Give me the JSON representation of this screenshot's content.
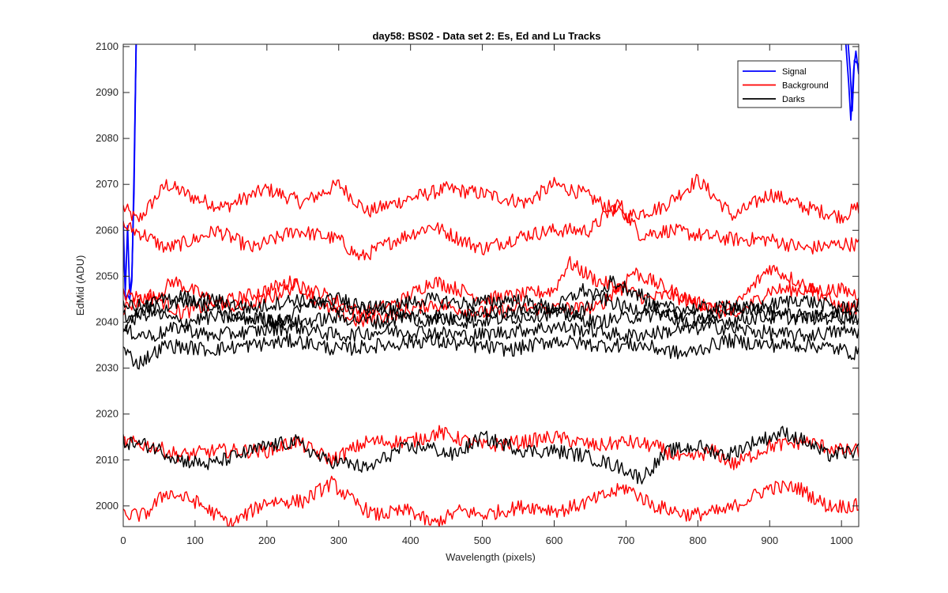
{
  "chart_data": {
    "type": "line",
    "title": "day58: BS02 - Data set 2: Es, Ed and Lu Tracks",
    "xlabel": "Wavelength (pixels)",
    "ylabel": "EdMid (ADU)",
    "xlim": [
      0,
      1024
    ],
    "ylim": [
      1995.5,
      2100.5
    ],
    "xticks": [
      0,
      100,
      200,
      300,
      400,
      500,
      600,
      700,
      800,
      900,
      1000
    ],
    "yticks": [
      2000,
      2010,
      2020,
      2030,
      2040,
      2050,
      2060,
      2070,
      2080,
      2090,
      2100
    ],
    "grid": false,
    "legend": {
      "position": "top-right",
      "entries": [
        {
          "label": "Signal",
          "color": "#0000ff"
        },
        {
          "label": "Background",
          "color": "#ff0000"
        },
        {
          "label": "Darks",
          "color": "#000000"
        }
      ]
    },
    "series": [
      {
        "group": "Signal",
        "color": "#0000ff",
        "points": [
          [
            0,
            2058
          ],
          [
            3,
            2047
          ],
          [
            6,
            2061
          ],
          [
            9,
            2046
          ],
          [
            12,
            2050
          ],
          [
            15,
            2068
          ],
          [
            18,
            2102
          ],
          [
            1005,
            2103
          ],
          [
            1010,
            2092
          ],
          [
            1013,
            2084
          ],
          [
            1017,
            2095
          ],
          [
            1020,
            2099
          ],
          [
            1024,
            2094
          ]
        ]
      },
      {
        "group": "Signal",
        "color": "#0000ff",
        "points": [
          [
            0,
            2062
          ],
          [
            3,
            2045
          ],
          [
            6,
            2046
          ],
          [
            9,
            2045
          ],
          [
            12,
            2049
          ],
          [
            15,
            2072
          ],
          [
            18,
            2101
          ],
          [
            1008,
            2103
          ],
          [
            1012,
            2095
          ],
          [
            1015,
            2086
          ],
          [
            1018,
            2097
          ],
          [
            1024,
            2096
          ]
        ]
      },
      {
        "group": "Background",
        "color": "#ff0000",
        "points": [
          [
            0,
            2065
          ],
          [
            20,
            2062
          ],
          [
            60,
            2070
          ],
          [
            100,
            2067
          ],
          [
            140,
            2065
          ],
          [
            200,
            2069
          ],
          [
            250,
            2066
          ],
          [
            300,
            2070
          ],
          [
            340,
            2064
          ],
          [
            400,
            2067
          ],
          [
            450,
            2069
          ],
          [
            500,
            2068
          ],
          [
            560,
            2066
          ],
          [
            600,
            2070
          ],
          [
            640,
            2068
          ],
          [
            700,
            2063
          ],
          [
            750,
            2065
          ],
          [
            800,
            2071
          ],
          [
            850,
            2063
          ],
          [
            900,
            2068
          ],
          [
            950,
            2065
          ],
          [
            1000,
            2063
          ],
          [
            1024,
            2065
          ]
        ]
      },
      {
        "group": "Background",
        "color": "#ff0000",
        "points": [
          [
            0,
            2061
          ],
          [
            30,
            2059
          ],
          [
            60,
            2056
          ],
          [
            100,
            2058
          ],
          [
            130,
            2060
          ],
          [
            180,
            2056
          ],
          [
            240,
            2060
          ],
          [
            300,
            2058
          ],
          [
            330,
            2054
          ],
          [
            380,
            2058
          ],
          [
            430,
            2061
          ],
          [
            470,
            2058
          ],
          [
            500,
            2056
          ],
          [
            560,
            2059
          ],
          [
            600,
            2060
          ],
          [
            650,
            2060
          ],
          [
            690,
            2066
          ],
          [
            720,
            2059
          ],
          [
            760,
            2060
          ],
          [
            800,
            2059
          ],
          [
            850,
            2058
          ],
          [
            900,
            2058
          ],
          [
            950,
            2056
          ],
          [
            1000,
            2057
          ],
          [
            1024,
            2057
          ]
        ]
      },
      {
        "group": "Background",
        "color": "#ff0000",
        "points": [
          [
            0,
            2046
          ],
          [
            40,
            2045
          ],
          [
            70,
            2049
          ],
          [
            120,
            2045
          ],
          [
            160,
            2043
          ],
          [
            200,
            2045
          ],
          [
            240,
            2048
          ],
          [
            280,
            2046
          ],
          [
            330,
            2042
          ],
          [
            380,
            2044
          ],
          [
            430,
            2049
          ],
          [
            470,
            2047
          ],
          [
            500,
            2045
          ],
          [
            560,
            2046
          ],
          [
            600,
            2047
          ],
          [
            620,
            2053
          ],
          [
            660,
            2049
          ],
          [
            700,
            2047
          ],
          [
            730,
            2045
          ],
          [
            760,
            2046
          ],
          [
            800,
            2044
          ],
          [
            850,
            2041
          ],
          [
            900,
            2047
          ],
          [
            950,
            2047
          ],
          [
            1000,
            2047
          ],
          [
            1024,
            2046
          ]
        ]
      },
      {
        "group": "Background",
        "color": "#ff0000",
        "points": [
          [
            0,
            2043
          ],
          [
            40,
            2046
          ],
          [
            80,
            2042
          ],
          [
            130,
            2044
          ],
          [
            180,
            2046
          ],
          [
            240,
            2049
          ],
          [
            280,
            2043
          ],
          [
            330,
            2040
          ],
          [
            380,
            2042
          ],
          [
            430,
            2044
          ],
          [
            500,
            2042
          ],
          [
            560,
            2043
          ],
          [
            600,
            2043
          ],
          [
            660,
            2043
          ],
          [
            710,
            2051
          ],
          [
            760,
            2047
          ],
          [
            800,
            2044
          ],
          [
            850,
            2043
          ],
          [
            900,
            2052
          ],
          [
            950,
            2048
          ],
          [
            1000,
            2043
          ],
          [
            1024,
            2043
          ]
        ]
      },
      {
        "group": "Background",
        "color": "#ff0000",
        "points": [
          [
            0,
            2014
          ],
          [
            40,
            2013
          ],
          [
            80,
            2011
          ],
          [
            130,
            2012
          ],
          [
            200,
            2012
          ],
          [
            240,
            2014
          ],
          [
            290,
            2010
          ],
          [
            340,
            2014
          ],
          [
            400,
            2014
          ],
          [
            440,
            2016
          ],
          [
            500,
            2013
          ],
          [
            560,
            2014
          ],
          [
            600,
            2015
          ],
          [
            660,
            2013
          ],
          [
            700,
            2014
          ],
          [
            740,
            2013
          ],
          [
            780,
            2010
          ],
          [
            820,
            2012
          ],
          [
            850,
            2009
          ],
          [
            900,
            2013
          ],
          [
            950,
            2014
          ],
          [
            1000,
            2012
          ],
          [
            1024,
            2012
          ]
        ]
      },
      {
        "group": "Background",
        "color": "#ff0000",
        "points": [
          [
            0,
            1998
          ],
          [
            30,
            1998
          ],
          [
            60,
            2003
          ],
          [
            100,
            2001
          ],
          [
            150,
            1996
          ],
          [
            200,
            2001
          ],
          [
            250,
            2001
          ],
          [
            290,
            2005
          ],
          [
            320,
            2001
          ],
          [
            350,
            1998
          ],
          [
            400,
            1999
          ],
          [
            430,
            1996
          ],
          [
            470,
            1999
          ],
          [
            500,
            1998
          ],
          [
            560,
            2000
          ],
          [
            610,
            1999
          ],
          [
            650,
            2001
          ],
          [
            700,
            2004
          ],
          [
            740,
            2000
          ],
          [
            790,
            1998
          ],
          [
            840,
            1999
          ],
          [
            900,
            2004
          ],
          [
            940,
            2004
          ],
          [
            980,
            2000
          ],
          [
            1024,
            2000
          ]
        ]
      },
      {
        "group": "Darks",
        "color": "#000000",
        "points": [
          [
            0,
            2044
          ],
          [
            40,
            2043
          ],
          [
            80,
            2044
          ],
          [
            120,
            2045
          ],
          [
            180,
            2043
          ],
          [
            240,
            2045
          ],
          [
            300,
            2043
          ],
          [
            360,
            2043
          ],
          [
            420,
            2045
          ],
          [
            480,
            2044
          ],
          [
            540,
            2045
          ],
          [
            600,
            2043
          ],
          [
            640,
            2047
          ],
          [
            700,
            2043
          ],
          [
            760,
            2043
          ],
          [
            820,
            2043
          ],
          [
            880,
            2043
          ],
          [
            940,
            2045
          ],
          [
            1000,
            2043
          ],
          [
            1024,
            2044
          ]
        ]
      },
      {
        "group": "Darks",
        "color": "#000000",
        "points": [
          [
            0,
            2041
          ],
          [
            40,
            2042
          ],
          [
            80,
            2040
          ],
          [
            120,
            2041
          ],
          [
            180,
            2041
          ],
          [
            240,
            2040
          ],
          [
            300,
            2041
          ],
          [
            360,
            2040
          ],
          [
            420,
            2042
          ],
          [
            480,
            2040
          ],
          [
            540,
            2041
          ],
          [
            600,
            2042
          ],
          [
            660,
            2040
          ],
          [
            700,
            2041
          ],
          [
            760,
            2042
          ],
          [
            820,
            2040
          ],
          [
            880,
            2041
          ],
          [
            940,
            2041
          ],
          [
            1000,
            2041
          ],
          [
            1024,
            2041
          ]
        ]
      },
      {
        "group": "Darks",
        "color": "#000000",
        "points": [
          [
            0,
            2038
          ],
          [
            40,
            2037
          ],
          [
            80,
            2039
          ],
          [
            120,
            2037
          ],
          [
            180,
            2038
          ],
          [
            240,
            2039
          ],
          [
            300,
            2037
          ],
          [
            360,
            2038
          ],
          [
            420,
            2038
          ],
          [
            480,
            2037
          ],
          [
            540,
            2038
          ],
          [
            600,
            2039
          ],
          [
            660,
            2038
          ],
          [
            700,
            2037
          ],
          [
            760,
            2038
          ],
          [
            820,
            2039
          ],
          [
            880,
            2038
          ],
          [
            940,
            2037
          ],
          [
            1000,
            2038
          ],
          [
            1024,
            2038
          ]
        ]
      },
      {
        "group": "Darks",
        "color": "#000000",
        "points": [
          [
            0,
            2034
          ],
          [
            20,
            2031
          ],
          [
            60,
            2035
          ],
          [
            120,
            2034
          ],
          [
            180,
            2035
          ],
          [
            240,
            2036
          ],
          [
            300,
            2034
          ],
          [
            360,
            2035
          ],
          [
            420,
            2036
          ],
          [
            480,
            2035
          ],
          [
            540,
            2034
          ],
          [
            600,
            2036
          ],
          [
            660,
            2035
          ],
          [
            720,
            2035
          ],
          [
            780,
            2033
          ],
          [
            840,
            2036
          ],
          [
            900,
            2035
          ],
          [
            960,
            2035
          ],
          [
            1000,
            2034
          ],
          [
            1024,
            2033
          ]
        ]
      },
      {
        "group": "Darks",
        "color": "#000000",
        "points": [
          [
            0,
            2039
          ],
          [
            40,
            2044
          ],
          [
            80,
            2046
          ],
          [
            120,
            2043
          ],
          [
            160,
            2041
          ],
          [
            220,
            2040
          ],
          [
            260,
            2044
          ],
          [
            300,
            2045
          ],
          [
            360,
            2043
          ],
          [
            400,
            2041
          ],
          [
            440,
            2040
          ],
          [
            500,
            2042
          ],
          [
            540,
            2042
          ],
          [
            580,
            2043
          ],
          [
            640,
            2042
          ],
          [
            680,
            2049
          ],
          [
            720,
            2046
          ],
          [
            760,
            2041
          ],
          [
            800,
            2040
          ],
          [
            850,
            2044
          ],
          [
            900,
            2042
          ],
          [
            960,
            2041
          ],
          [
            1024,
            2042
          ]
        ]
      },
      {
        "group": "Darks",
        "color": "#000000",
        "points": [
          [
            0,
            2014
          ],
          [
            40,
            2013
          ],
          [
            80,
            2010
          ],
          [
            120,
            2009
          ],
          [
            160,
            2011
          ],
          [
            200,
            2013
          ],
          [
            240,
            2014
          ],
          [
            280,
            2010
          ],
          [
            320,
            2009
          ],
          [
            340,
            2008
          ],
          [
            380,
            2012
          ],
          [
            420,
            2013
          ],
          [
            460,
            2011
          ],
          [
            500,
            2015
          ],
          [
            560,
            2012
          ],
          [
            600,
            2012
          ],
          [
            640,
            2011
          ],
          [
            700,
            2008
          ],
          [
            720,
            2006
          ],
          [
            760,
            2012
          ],
          [
            800,
            2013
          ],
          [
            840,
            2011
          ],
          [
            880,
            2014
          ],
          [
            920,
            2016
          ],
          [
            950,
            2014
          ],
          [
            980,
            2011
          ],
          [
            1024,
            2012
          ]
        ]
      }
    ]
  }
}
